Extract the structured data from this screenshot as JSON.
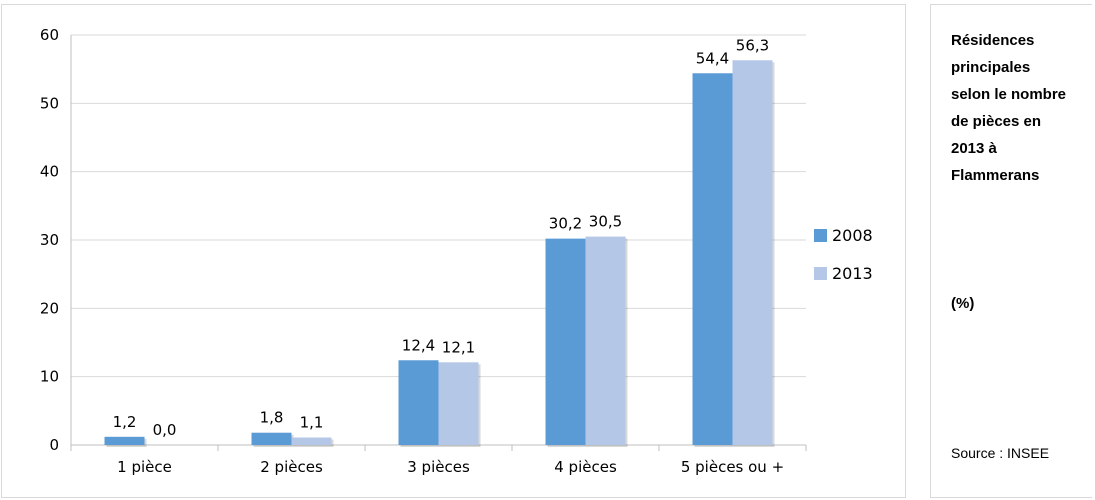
{
  "chart_data": {
    "type": "bar",
    "categories": [
      "1 pièce",
      "2 pièces",
      "3 pièces",
      "4 pièces",
      "5 pièces ou +"
    ],
    "series": [
      {
        "name": "2008",
        "values": [
          1.2,
          1.8,
          12.4,
          30.2,
          54.4
        ],
        "labels": [
          "1,2",
          "1,8",
          "12,4",
          "30,2",
          "54,4"
        ],
        "color": "#5b9bd5"
      },
      {
        "name": "2013",
        "values": [
          0.0,
          1.1,
          12.1,
          30.5,
          56.3
        ],
        "labels": [
          "0,0",
          "1,1",
          "12,1",
          "30,5",
          "56,3"
        ],
        "color": "#b4c7e7"
      }
    ],
    "yticks": [
      "0",
      "10",
      "20",
      "30",
      "40",
      "50",
      "60"
    ],
    "ylim": [
      0,
      60
    ],
    "grid": true,
    "legend_position": "right",
    "title": "",
    "xlabel": "",
    "ylabel": ""
  },
  "side_panel": {
    "title": "Résidences\nprincipales\nselon le nombre\nde pièces en\n2013 à\nFlammerans",
    "unit": "(%)",
    "source": "Source : INSEE"
  }
}
